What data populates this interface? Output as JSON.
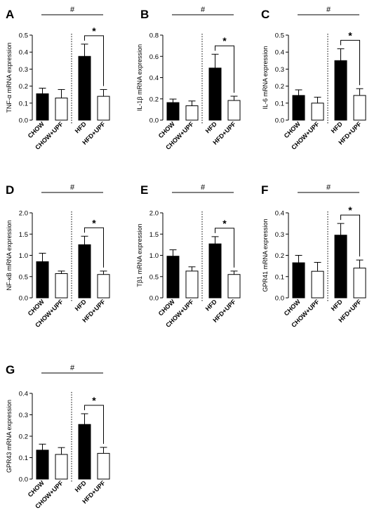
{
  "chart_data": [
    {
      "panel": "A",
      "type": "bar",
      "ylabel": "TNF-α mRNA expression",
      "ylim": [
        0,
        0.5
      ],
      "yticks": [
        "0.0",
        "0.1",
        "0.2",
        "0.3",
        "0.4",
        "0.5"
      ],
      "categories": [
        "CHOW",
        "CHOW+UPF",
        "HFD",
        "HFD+UPF"
      ],
      "values": [
        0.155,
        0.13,
        0.375,
        0.14
      ],
      "errors": [
        0.033,
        0.05,
        0.072,
        0.04
      ],
      "fills": [
        "#000000",
        "#ffffff",
        "#000000",
        "#ffffff"
      ],
      "overall_sig": "#",
      "pair_sig": "*"
    },
    {
      "panel": "B",
      "type": "bar",
      "ylabel": "IL-1β mRNA expression",
      "ylim": [
        0,
        0.8
      ],
      "yticks": [
        "0.0",
        "0.2",
        "0.4",
        "0.6",
        "0.8"
      ],
      "categories": [
        "CHOW",
        "CHOW+UPF",
        "HFD",
        "HFD+UPF"
      ],
      "values": [
        0.165,
        0.135,
        0.49,
        0.185
      ],
      "errors": [
        0.033,
        0.045,
        0.13,
        0.04
      ],
      "fills": [
        "#000000",
        "#ffffff",
        "#000000",
        "#ffffff"
      ],
      "overall_sig": "#",
      "pair_sig": "*"
    },
    {
      "panel": "C",
      "type": "bar",
      "ylabel": "IL-6 mRNA expression",
      "ylim": [
        0,
        0.5
      ],
      "yticks": [
        "0.0",
        "0.1",
        "0.2",
        "0.3",
        "0.4",
        "0.5"
      ],
      "categories": [
        "CHOW",
        "CHOW+UPF",
        "HFD",
        "HFD+UPF"
      ],
      "values": [
        0.145,
        0.1,
        0.35,
        0.145
      ],
      "errors": [
        0.033,
        0.035,
        0.07,
        0.04
      ],
      "fills": [
        "#000000",
        "#ffffff",
        "#000000",
        "#ffffff"
      ],
      "overall_sig": "#",
      "pair_sig": "*"
    },
    {
      "panel": "D",
      "type": "bar",
      "ylabel": "NF-κB mRNA expression",
      "ylim": [
        0,
        2.0
      ],
      "yticks": [
        "0.0",
        "0.5",
        "1.0",
        "1.5",
        "2.0"
      ],
      "categories": [
        "CHOW",
        "CHOW+UPF",
        "HFD",
        "HFD+UPF"
      ],
      "values": [
        0.85,
        0.57,
        1.25,
        0.55
      ],
      "errors": [
        0.2,
        0.06,
        0.2,
        0.08
      ],
      "fills": [
        "#000000",
        "#ffffff",
        "#000000",
        "#ffffff"
      ],
      "overall_sig": "#",
      "pair_sig": "*"
    },
    {
      "panel": "E",
      "type": "bar",
      "ylabel": "Tβ1 mRNA expression",
      "ylim": [
        0,
        2.0
      ],
      "yticks": [
        "0.0",
        "0.5",
        "1.0",
        "1.5",
        "2.0"
      ],
      "categories": [
        "CHOW",
        "CHOW+UPF",
        "HFD",
        "HFD+UPF"
      ],
      "values": [
        0.98,
        0.63,
        1.27,
        0.55
      ],
      "errors": [
        0.15,
        0.1,
        0.17,
        0.08
      ],
      "fills": [
        "#000000",
        "#ffffff",
        "#000000",
        "#ffffff"
      ],
      "overall_sig": "#",
      "pair_sig": "*"
    },
    {
      "panel": "F",
      "type": "bar",
      "ylabel": "GPR41 mRNA expression",
      "ylim": [
        0,
        0.4
      ],
      "yticks": [
        "0.0",
        "0.1",
        "0.2",
        "0.3",
        "0.4"
      ],
      "categories": [
        "CHOW",
        "CHOW+UPF",
        "HFD",
        "HFD+UPF"
      ],
      "values": [
        0.165,
        0.125,
        0.295,
        0.14
      ],
      "errors": [
        0.035,
        0.042,
        0.055,
        0.038
      ],
      "fills": [
        "#000000",
        "#ffffff",
        "#000000",
        "#ffffff"
      ],
      "overall_sig": "#",
      "pair_sig": "*"
    },
    {
      "panel": "G",
      "type": "bar",
      "ylabel": "GPR43 mRNA expression",
      "ylim": [
        0,
        0.4
      ],
      "yticks": [
        "0.0",
        "0.1",
        "0.2",
        "0.3",
        "0.4"
      ],
      "categories": [
        "CHOW",
        "CHOW+UPF",
        "HFD",
        "HFD+UPF"
      ],
      "values": [
        0.135,
        0.115,
        0.255,
        0.12
      ],
      "errors": [
        0.028,
        0.032,
        0.05,
        0.028
      ],
      "fills": [
        "#000000",
        "#ffffff",
        "#000000",
        "#ffffff"
      ],
      "overall_sig": "#",
      "pair_sig": "*"
    }
  ]
}
